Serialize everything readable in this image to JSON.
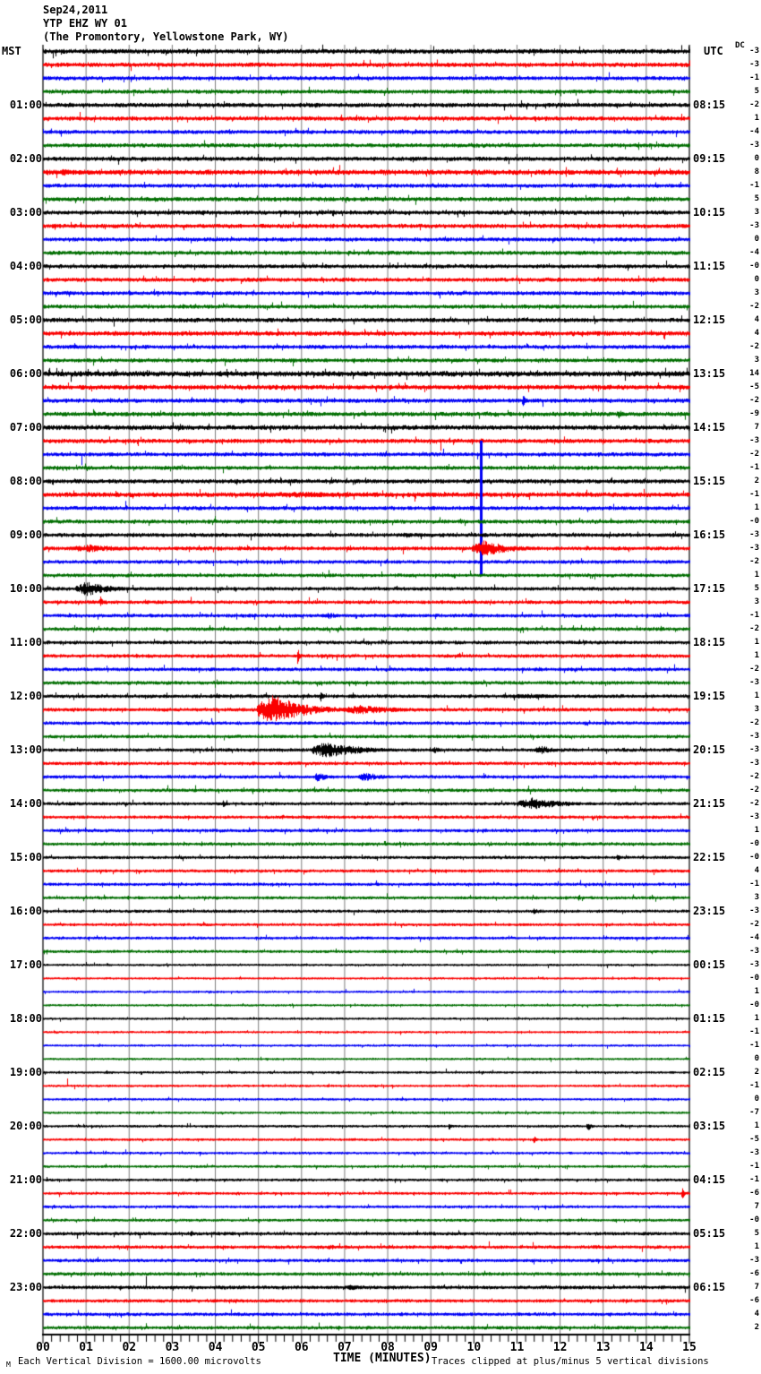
{
  "header": {
    "date": "Sep24,2011",
    "station": "YTP EHZ WY 01",
    "location": "(The Promontory, Yellowstone Park, WY)",
    "left_tz": "MST",
    "right_tz": "UTC",
    "dc_label": "DC"
  },
  "footer": {
    "corner_mark": "M",
    "scale_note": "Each Vertical Division = 1600.00 microvolts",
    "axis_title": "TIME (MINUTES)",
    "clip_note": "Traces clipped at plus/minus 5 vertical divisions"
  },
  "chart_data": {
    "type": "line",
    "title": "YTP EHZ WY 01 helicorder, Sep24,2011",
    "xlabel": "TIME (MINUTES)",
    "x_range": [
      0,
      15
    ],
    "x_ticks": [
      "00",
      "01",
      "02",
      "03",
      "04",
      "05",
      "06",
      "07",
      "08",
      "09",
      "10",
      "11",
      "12",
      "13",
      "14",
      "15"
    ],
    "minor_ticks_per_minute": 5,
    "row_count": 96,
    "minutes_per_row": 15,
    "vertical_division_microvolts": 1600.0,
    "clipped_at_divisions": 5,
    "trace_color_cycle": [
      "black",
      "red",
      "blue",
      "green"
    ],
    "palette": {
      "black": "#000000",
      "red": "#fa0000",
      "blue": "#0000f5",
      "green": "#006e00",
      "grid": "#7d7d7d",
      "edge": "#333333"
    },
    "label_row_step": 4,
    "left_time_labels": [
      "01:00",
      "02:00",
      "03:00",
      "04:00",
      "05:00",
      "06:00",
      "07:00",
      "08:00",
      "09:00",
      "10:00",
      "11:00",
      "12:00",
      "13:00",
      "14:00",
      "15:00",
      "16:00",
      "17:00",
      "18:00",
      "19:00",
      "20:00",
      "21:00",
      "22:00",
      "23:00"
    ],
    "right_time_labels": [
      "08:15",
      "09:15",
      "10:15",
      "11:15",
      "12:15",
      "13:15",
      "14:15",
      "15:15",
      "16:15",
      "17:15",
      "18:15",
      "19:15",
      "20:15",
      "21:15",
      "22:15",
      "23:15",
      "00:15",
      "01:15",
      "02:15",
      "03:15",
      "04:15",
      "05:15",
      "06:15"
    ],
    "dc_offsets": [
      "-3",
      "-3",
      "-1",
      "5",
      "-2",
      "1",
      "-4",
      "-3",
      "0",
      "8",
      "-1",
      "5",
      "3",
      "-3",
      "0",
      "-4",
      "-0",
      "0",
      "3",
      "-2",
      "4",
      "4",
      "-2",
      "3",
      "14",
      "-5",
      "-2",
      "-9",
      "7",
      "-3",
      "-2",
      "-1",
      "2",
      "-1",
      "1",
      "-0",
      "-3",
      "-3",
      "-2",
      "1",
      "5",
      "3",
      "-1",
      "-2",
      "1",
      "1",
      "-2",
      "-3",
      "1",
      "3",
      "-2",
      "-3",
      "-3",
      "-3",
      "-2",
      "-2",
      "-2",
      "-3",
      "1",
      "-0",
      "-0",
      "4",
      "-1",
      "3",
      "-3",
      "-2",
      "-4",
      "-3",
      "-3",
      "-0",
      "1",
      "-0",
      "1",
      "-1",
      "-1",
      "0",
      "2",
      "-1",
      "0",
      "-7",
      "1",
      "-5",
      "-3",
      "-1",
      "-1",
      "-6",
      "7",
      "-0",
      "5",
      "1",
      "-3",
      "-6",
      "7",
      "-6",
      "4",
      "2"
    ],
    "noise_amp": [
      2.4,
      2.2,
      2.0,
      2.0,
      2.2,
      2.2,
      2.0,
      2.0,
      2.2,
      2.6,
      2.0,
      2.2,
      2.2,
      2.2,
      2.0,
      2.0,
      2.0,
      2.0,
      2.0,
      2.0,
      2.2,
      2.4,
      2.0,
      2.0,
      2.8,
      2.4,
      2.2,
      2.2,
      2.4,
      2.2,
      2.0,
      2.0,
      2.2,
      2.4,
      2.0,
      2.0,
      2.0,
      2.0,
      1.8,
      1.8,
      1.8,
      1.8,
      1.8,
      1.8,
      1.8,
      1.8,
      1.8,
      1.8,
      1.8,
      1.8,
      1.7,
      1.7,
      1.7,
      1.7,
      1.7,
      1.7,
      1.6,
      1.6,
      1.6,
      1.6,
      1.5,
      1.5,
      1.5,
      1.5,
      1.5,
      1.4,
      1.4,
      1.4,
      1.0,
      1.0,
      1.0,
      1.0,
      1.0,
      1.0,
      1.0,
      1.0,
      1.1,
      1.1,
      1.1,
      1.1,
      1.2,
      1.2,
      1.2,
      1.2,
      1.3,
      1.3,
      1.3,
      1.3,
      1.7,
      1.7,
      1.6,
      1.7,
      1.8,
      1.7,
      1.7,
      1.7
    ],
    "events": [
      {
        "row": 9,
        "m0": 0.2,
        "m1": 1.5,
        "peak": 4
      },
      {
        "row": 26,
        "m0": 11.1,
        "m1": 11.3,
        "peak": 6
      },
      {
        "row": 27,
        "m0": 13.3,
        "m1": 13.6,
        "peak": 5
      },
      {
        "row": 33,
        "m0": 5.0,
        "m1": 9.5,
        "peak": 3.5
      },
      {
        "row": 34,
        "m0": 9.9,
        "m1": 10.12,
        "peak": 4
      },
      {
        "row": 34,
        "m0": 10.13,
        "m1": 10.19,
        "peak": 75,
        "clip": true
      },
      {
        "row": 36,
        "m0": 8.2,
        "m1": 9.6,
        "peak": 3
      },
      {
        "row": 37,
        "m0": 0.6,
        "m1": 2.9,
        "peak": 4.5
      },
      {
        "row": 37,
        "m0": 9.95,
        "m1": 11.5,
        "peak": 9
      },
      {
        "row": 40,
        "m0": 0.75,
        "m1": 2.2,
        "peak": 8
      },
      {
        "row": 41,
        "m0": 1.3,
        "m1": 1.45,
        "peak": 9
      },
      {
        "row": 42,
        "m0": 6.5,
        "m1": 7.1,
        "peak": 4
      },
      {
        "row": 45,
        "m0": 5.88,
        "m1": 6.0,
        "peak": 10
      },
      {
        "row": 48,
        "m0": 6.4,
        "m1": 6.6,
        "peak": 6
      },
      {
        "row": 48,
        "m0": 10.5,
        "m1": 14.2,
        "peak": 2.5
      },
      {
        "row": 49,
        "m0": 4.95,
        "m1": 6.9,
        "peak": 17
      },
      {
        "row": 49,
        "m0": 6.9,
        "m1": 9.4,
        "peak": 5
      },
      {
        "row": 52,
        "m0": 6.2,
        "m1": 8.3,
        "peak": 9
      },
      {
        "row": 52,
        "m0": 9.0,
        "m1": 9.4,
        "peak": 4
      },
      {
        "row": 52,
        "m0": 11.4,
        "m1": 12.2,
        "peak": 5
      },
      {
        "row": 54,
        "m0": 6.3,
        "m1": 6.75,
        "peak": 6
      },
      {
        "row": 54,
        "m0": 7.3,
        "m1": 8.3,
        "peak": 5
      },
      {
        "row": 56,
        "m0": 4.15,
        "m1": 4.3,
        "peak": 6
      },
      {
        "row": 56,
        "m0": 11.0,
        "m1": 12.8,
        "peak": 7
      },
      {
        "row": 60,
        "m0": 13.3,
        "m1": 13.5,
        "peak": 4
      },
      {
        "row": 63,
        "m0": 12.4,
        "m1": 12.55,
        "peak": 4
      },
      {
        "row": 64,
        "m0": 11.3,
        "m1": 11.8,
        "peak": 3
      },
      {
        "row": 80,
        "m0": 9.4,
        "m1": 9.55,
        "peak": 5
      },
      {
        "row": 80,
        "m0": 12.6,
        "m1": 12.8,
        "peak": 6
      },
      {
        "row": 81,
        "m0": 11.35,
        "m1": 11.5,
        "peak": 5
      },
      {
        "row": 85,
        "m0": 14.8,
        "m1": 14.95,
        "peak": 7
      },
      {
        "row": 88,
        "m0": 3.4,
        "m1": 3.55,
        "peak": 4
      },
      {
        "row": 89,
        "m0": 6.6,
        "m1": 7.0,
        "peak": 3
      },
      {
        "row": 92,
        "m0": 7.0,
        "m1": 7.9,
        "peak": 3
      }
    ]
  }
}
